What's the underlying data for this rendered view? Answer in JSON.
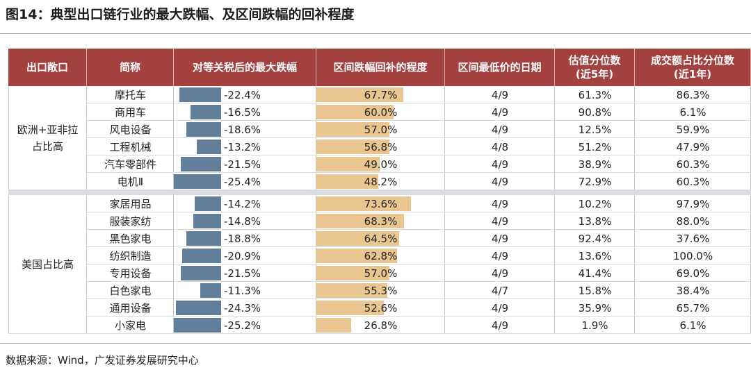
{
  "title": "图14：典型出口链行业的最大跌幅、及区间跌幅的回补程度",
  "table": {
    "headers": [
      "出口敞口",
      "简称",
      "对等关税后的最大跌幅",
      "区间跌幅回补的程度",
      "区间最低价的日期",
      "估值分位数\n(近5年)",
      "成交额占比分位数\n(近1年)"
    ],
    "groups": [
      {
        "label": "欧洲+亚非拉\n占比高",
        "rows": [
          [
            "摩托车",
            "-22.4%",
            "67.7%",
            "4/9",
            "61.3%",
            "86.3%"
          ],
          [
            "商用车",
            "-16.5%",
            "60.0%",
            "4/9",
            "90.8%",
            "6.1%"
          ],
          [
            "风电设备",
            "-18.6%",
            "57.0%",
            "4/9",
            "12.5%",
            "59.9%"
          ],
          [
            "工程机械",
            "-13.2%",
            "56.8%",
            "4/8",
            "51.2%",
            "47.9%"
          ],
          [
            "汽车零部件",
            "-21.5%",
            "49.0%",
            "4/9",
            "38.9%",
            "60.3%"
          ],
          [
            "电机Ⅱ",
            "-25.4%",
            "48.2%",
            "4/9",
            "72.9%",
            "60.3%"
          ]
        ]
      },
      {
        "label": "美国占比高",
        "rows": [
          [
            "家居用品",
            "-14.2%",
            "73.6%",
            "4/9",
            "10.2%",
            "97.9%"
          ],
          [
            "服装家纺",
            "-14.8%",
            "68.3%",
            "4/9",
            "13.8%",
            "88.0%"
          ],
          [
            "黑色家电",
            "-18.8%",
            "64.5%",
            "4/9",
            "92.4%",
            "37.6%"
          ],
          [
            "纺织制造",
            "-20.9%",
            "62.8%",
            "4/9",
            "13.6%",
            "100.0%"
          ],
          [
            "专用设备",
            "-21.5%",
            "57.0%",
            "4/9",
            "41.4%",
            "69.0%"
          ],
          [
            "白色家电",
            "-11.3%",
            "55.3%",
            "4/7",
            "15.8%",
            "38.4%"
          ],
          [
            "通用设备",
            "-24.3%",
            "52.6%",
            "4/9",
            "35.9%",
            "65.7%"
          ],
          [
            "小家电",
            "-25.2%",
            "26.8%",
            "4/9",
            "1.9%",
            "6.1%"
          ]
        ]
      }
    ]
  },
  "source": "数据来源：Wind，广发证券发展研究中心"
}
